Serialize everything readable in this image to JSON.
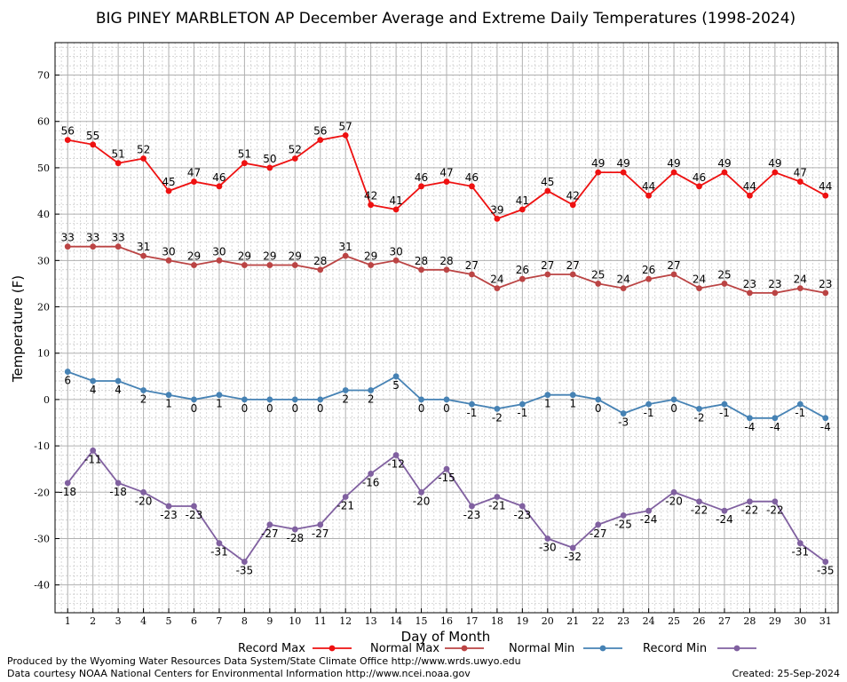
{
  "chart_data": {
    "type": "line",
    "title": "BIG PINEY MARBLETON AP December Average and Extreme Daily Temperatures (1998-2024)",
    "xlabel": "Day of Month",
    "ylabel": "Temperature (F)",
    "x": [
      1,
      2,
      3,
      4,
      5,
      6,
      7,
      8,
      9,
      10,
      11,
      12,
      13,
      14,
      15,
      16,
      17,
      18,
      19,
      20,
      21,
      22,
      23,
      24,
      25,
      26,
      27,
      28,
      29,
      30,
      31
    ],
    "xlim": [
      0.5,
      31.5
    ],
    "ylim": [
      -46,
      77
    ],
    "yticks": [
      -40,
      -30,
      -20,
      -10,
      0,
      10,
      20,
      30,
      40,
      50,
      60,
      70
    ],
    "grid": true,
    "series": [
      {
        "name": "Record Max",
        "color": "#ee1111",
        "values": [
          56,
          55,
          51,
          52,
          45,
          47,
          46,
          51,
          50,
          52,
          56,
          57,
          42,
          41,
          46,
          47,
          46,
          39,
          41,
          45,
          42,
          49,
          49,
          44,
          49,
          46,
          49,
          44,
          49,
          47,
          44
        ]
      },
      {
        "name": "Normal Max",
        "color": "#bb4444",
        "values": [
          33,
          33,
          33,
          31,
          30,
          29,
          30,
          29,
          29,
          29,
          28,
          31,
          29,
          30,
          28,
          28,
          27,
          24,
          26,
          27,
          27,
          25,
          24,
          26,
          27,
          24,
          25,
          23,
          23,
          24,
          23
        ]
      },
      {
        "name": "Normal Min",
        "color": "#4682b4",
        "values": [
          6,
          4,
          4,
          2,
          1,
          0,
          1,
          0,
          0,
          0,
          0,
          2,
          2,
          5,
          0,
          0,
          -1,
          -2,
          -1,
          1,
          1,
          0,
          -3,
          -1,
          0,
          -2,
          -1,
          -4,
          -4,
          -1,
          -4
        ]
      },
      {
        "name": "Record Min",
        "color": "#8060a0",
        "values": [
          -18,
          -11,
          -18,
          -20,
          -23,
          -23,
          -31,
          -35,
          -27,
          -28,
          -27,
          -21,
          -16,
          -12,
          -20,
          -15,
          -23,
          -21,
          -23,
          -30,
          -32,
          -27,
          -25,
          -24,
          -20,
          -22,
          -24,
          -22,
          -22,
          -31,
          -35
        ]
      }
    ]
  },
  "footer": {
    "line1": "Produced by the Wyoming Water Resources Data System/State Climate Office http://www.wrds.uwyo.edu",
    "line2": "Data courtesy NOAA National Centers for Environmental Information http://www.ncei.noaa.gov",
    "created": "Created:  25-Sep-2024"
  }
}
